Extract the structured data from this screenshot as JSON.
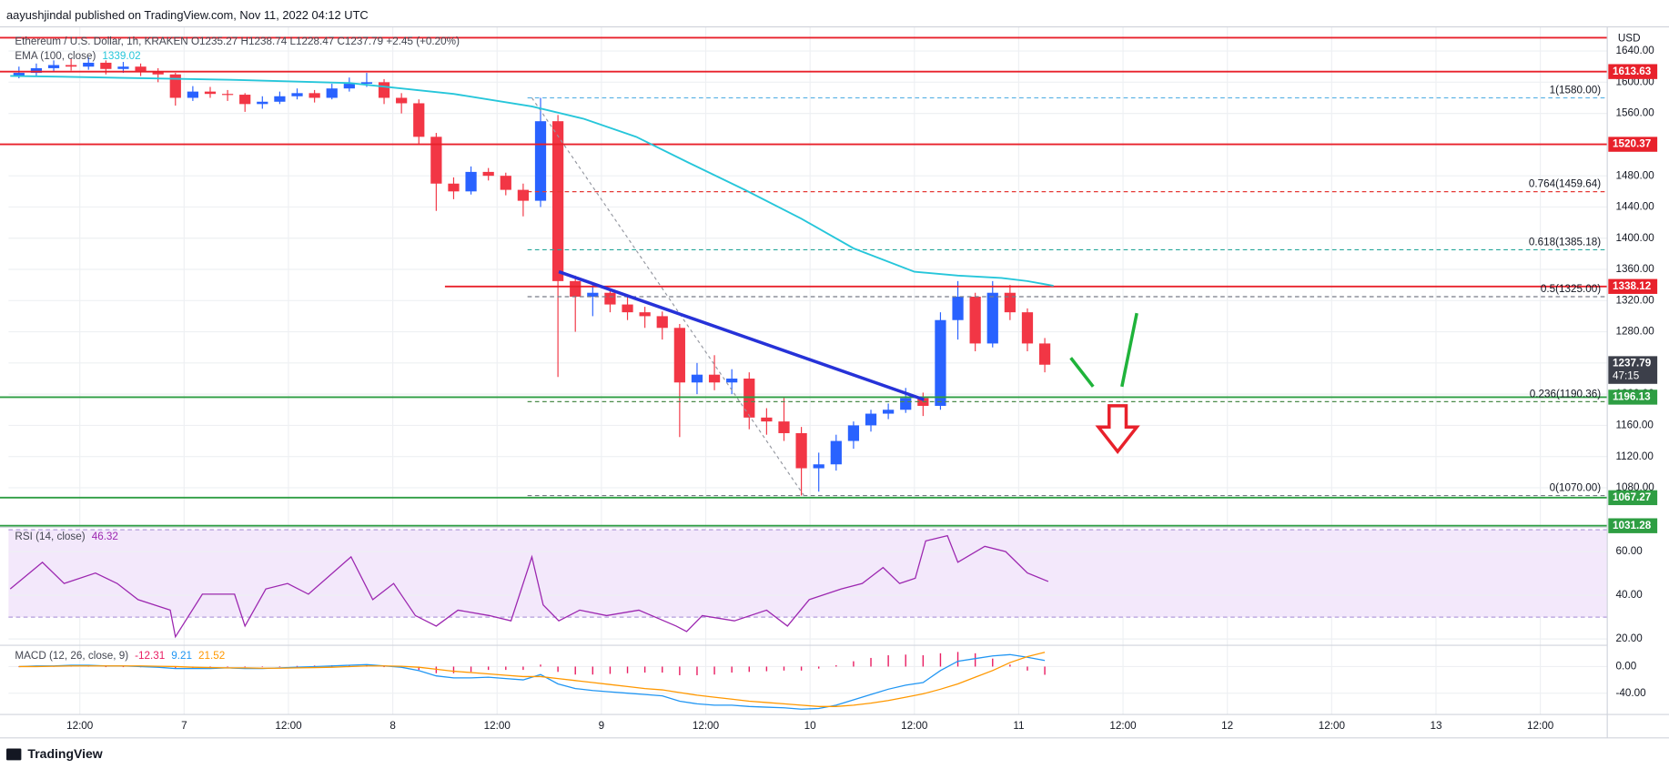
{
  "header": {
    "publisher": "aayushjindal published on TradingView.com, Nov 11, 2022 04:12 UTC",
    "symbol": "Ethereum / U.S. Dollar, 1h, KRAKEN  O1235.27  H1238.74  L1228.47  C1237.79  +2.45 (+0.20%)"
  },
  "chart_data": [
    {
      "type": "candlestick",
      "y_unit": "USD",
      "grid": true,
      "xlim": [
        3.8,
        187.7
      ],
      "ylim": [
        1029.5,
        1671
      ],
      "xticks": [
        {
          "value": 12,
          "label": "12:00"
        },
        {
          "value": 24,
          "label": "7"
        },
        {
          "value": 36,
          "label": "12:00"
        },
        {
          "value": 48,
          "label": "8"
        },
        {
          "value": 60,
          "label": "12:00"
        },
        {
          "value": 72,
          "label": "9"
        },
        {
          "value": 84,
          "label": "12:00"
        },
        {
          "value": 96,
          "label": "10"
        },
        {
          "value": 108,
          "label": "12:00"
        },
        {
          "value": 120,
          "label": "11"
        },
        {
          "value": 132,
          "label": "12:00"
        },
        {
          "value": 144,
          "label": "12"
        },
        {
          "value": 156,
          "label": "12:00"
        },
        {
          "value": 168,
          "label": "13"
        },
        {
          "value": 180,
          "label": "12:00"
        }
      ],
      "yticks": [
        {
          "value": 1080,
          "label": "1080.00"
        },
        {
          "value": 1120,
          "label": "1120.00"
        },
        {
          "value": 1160,
          "label": "1160.00"
        },
        {
          "value": 1200,
          "label": "1200.00"
        },
        {
          "value": 1240,
          "label": "1240.00"
        },
        {
          "value": 1280,
          "label": "1280.00"
        },
        {
          "value": 1320,
          "label": "1320.00"
        },
        {
          "value": 1360,
          "label": "1360.00"
        },
        {
          "value": 1400,
          "label": "1400.00"
        },
        {
          "value": 1440,
          "label": "1440.00"
        },
        {
          "value": 1480,
          "label": "1480.00"
        },
        {
          "value": 1520,
          "label": "1520.00"
        },
        {
          "value": 1560,
          "label": "1560.00"
        },
        {
          "value": 1600,
          "label": "1600.00"
        },
        {
          "value": 1640,
          "label": "1640.00"
        }
      ],
      "up_color": "#2962ff",
      "down_color": "#f23645",
      "x": [
        5,
        7,
        9,
        11,
        13,
        15,
        17,
        19,
        21,
        23,
        25,
        27,
        29,
        31,
        33,
        35,
        37,
        39,
        41,
        43,
        45,
        47,
        49,
        51,
        53,
        55,
        57,
        59,
        61,
        63,
        65,
        67,
        69,
        71,
        73,
        75,
        77,
        79,
        81,
        83,
        85,
        87,
        89,
        91,
        93,
        95,
        97,
        99,
        101,
        103,
        105,
        107,
        109,
        111,
        113,
        115,
        117,
        119,
        121,
        123
      ],
      "open": [
        1608,
        1612,
        1618,
        1622,
        1620,
        1625,
        1617,
        1620,
        1614,
        1610,
        1580,
        1588,
        1585,
        1584,
        1572,
        1575,
        1582,
        1586,
        1580,
        1592,
        1598,
        1600,
        1580,
        1573,
        1530,
        1470,
        1460,
        1485,
        1480,
        1462,
        1448,
        1550,
        1345,
        1325,
        1330,
        1315,
        1305,
        1300,
        1285,
        1215,
        1225,
        1215,
        1220,
        1170,
        1165,
        1150,
        1105,
        1110,
        1140,
        1160,
        1175,
        1180,
        1195,
        1185,
        1295,
        1325,
        1265,
        1330,
        1305,
        1265
      ],
      "high": [
        1620,
        1624,
        1628,
        1630,
        1632,
        1628,
        1626,
        1624,
        1618,
        1612,
        1595,
        1594,
        1590,
        1586,
        1582,
        1588,
        1592,
        1590,
        1598,
        1606,
        1612,
        1604,
        1586,
        1578,
        1535,
        1478,
        1492,
        1490,
        1484,
        1470,
        1580,
        1558,
        1352,
        1340,
        1335,
        1325,
        1312,
        1306,
        1290,
        1240,
        1250,
        1232,
        1228,
        1182,
        1195,
        1158,
        1125,
        1148,
        1165,
        1180,
        1188,
        1208,
        1202,
        1305,
        1345,
        1330,
        1345,
        1340,
        1310,
        1272
      ],
      "low": [
        1605,
        1608,
        1614,
        1615,
        1616,
        1610,
        1612,
        1608,
        1600,
        1570,
        1576,
        1580,
        1576,
        1562,
        1566,
        1572,
        1578,
        1574,
        1578,
        1588,
        1594,
        1572,
        1560,
        1520,
        1435,
        1450,
        1456,
        1474,
        1455,
        1428,
        1440,
        1222,
        1280,
        1300,
        1305,
        1295,
        1285,
        1270,
        1145,
        1200,
        1205,
        1200,
        1155,
        1148,
        1140,
        1070,
        1075,
        1102,
        1130,
        1152,
        1168,
        1176,
        1172,
        1180,
        1270,
        1255,
        1260,
        1295,
        1255,
        1228
      ],
      "close": [
        1612,
        1618,
        1622,
        1620,
        1625,
        1617,
        1620,
        1614,
        1610,
        1580,
        1588,
        1585,
        1584,
        1572,
        1575,
        1582,
        1586,
        1580,
        1592,
        1598,
        1600,
        1580,
        1573,
        1530,
        1470,
        1460,
        1485,
        1480,
        1462,
        1448,
        1550,
        1345,
        1325,
        1330,
        1315,
        1305,
        1300,
        1285,
        1215,
        1225,
        1215,
        1220,
        1170,
        1165,
        1150,
        1105,
        1110,
        1140,
        1160,
        1175,
        1180,
        1195,
        1185,
        1295,
        1325,
        1265,
        1330,
        1305,
        1265,
        1237.79
      ],
      "ema": {
        "name": "EMA (100, close)",
        "color": "#26c6da",
        "x": [
          4,
          10,
          20,
          30,
          43,
          55,
          64,
          70,
          76,
          82,
          88.5,
          95,
          101,
          108,
          113,
          118,
          121,
          124
        ],
        "values": [
          1608,
          1607,
          1605,
          1603,
          1599,
          1585,
          1569,
          1553,
          1530,
          1497,
          1462,
          1425,
          1387,
          1357,
          1352,
          1349,
          1345,
          1339.02
        ]
      },
      "levels": [
        {
          "value": 1657,
          "color": "#e8212b",
          "axis_label": false
        },
        {
          "value": 1613.63,
          "color": "#e8212b",
          "axis_label": true
        },
        {
          "value": 1520.37,
          "color": "#e8212b",
          "axis_label": true
        },
        {
          "value": 1338.12,
          "color": "#e8212b",
          "axis_label": true,
          "x_start": 54
        },
        {
          "value": 1196.13,
          "color": "#2e9e43",
          "axis_label": true
        },
        {
          "value": 1067.27,
          "color": "#2e9e43",
          "axis_label": true
        },
        {
          "value": 1031.28,
          "color": "#2e9e43",
          "axis_label": true
        }
      ],
      "fib": {
        "x_start": 63.5,
        "levels": [
          {
            "value": 1580,
            "label": "1(1580.00)",
            "color": "#5fb4e5"
          },
          {
            "value": 1459.64,
            "label": "0.764(1459.64)",
            "color": "#e53935"
          },
          {
            "value": 1385.18,
            "label": "0.618(1385.18)",
            "color": "#26a69a"
          },
          {
            "value": 1325,
            "label": "0.5(1325.00)",
            "color": "#787b86"
          },
          {
            "value": 1190.36,
            "label": "0.236(1190.36)",
            "color": "#4c8c4a"
          },
          {
            "value": 1070,
            "label": "0(1070.00)",
            "color": "#787b86"
          }
        ]
      },
      "fib_guide": {
        "x": [
          64,
          95.3
        ],
        "values": [
          1580,
          1070
        ],
        "color": "#9598a1"
      },
      "trendline": {
        "x": [
          67.1,
          109.1
        ],
        "values": [
          1357,
          1193
        ],
        "color": "#2632d8"
      },
      "last_price": {
        "value": 1237.79,
        "countdown": "47:15",
        "color": "#3c3f4a"
      }
    },
    {
      "type": "line",
      "name": "RSI (14, close)",
      "color": "#9c27b0",
      "xlim": [
        3.8,
        187.7
      ],
      "ylim": [
        17.1,
        71.2
      ],
      "yticks": [
        {
          "value": 20,
          "label": "20.00"
        },
        {
          "value": 40,
          "label": "40.00"
        },
        {
          "value": 60,
          "label": "60.00"
        }
      ],
      "band": [
        30,
        70
      ],
      "band_color": "#f3e8fb",
      "band_line_color": "#b39ddb",
      "x": [
        4,
        7.7,
        10.2,
        13.8,
        16.3,
        18.7,
        22.4,
        23,
        26.1,
        29.8,
        31,
        33.4,
        35.9,
        38.3,
        43.2,
        45.7,
        48.1,
        50.6,
        53,
        55.5,
        59.1,
        61.6,
        64,
        65.3,
        67.1,
        69.5,
        72.6,
        76.3,
        80.6,
        81.8,
        83.6,
        87.3,
        91,
        93.4,
        95.9,
        99.6,
        102,
        104.4,
        106.3,
        108.1,
        109.3,
        111.8,
        113,
        116.1,
        118.5,
        121,
        123.4
      ],
      "values": [
        42.9,
        55.1,
        45.4,
        50.2,
        45.4,
        38,
        33.2,
        21,
        40.5,
        40.5,
        25.9,
        42.9,
        45.4,
        40.5,
        57.6,
        38,
        45.4,
        30.7,
        25.9,
        33.2,
        30.7,
        28.3,
        57.6,
        35.6,
        28.3,
        33.2,
        30.7,
        33.2,
        25.9,
        23.4,
        30.7,
        28.3,
        33.2,
        25.9,
        38,
        42.9,
        45.4,
        52.7,
        45.4,
        47.8,
        64.9,
        67.3,
        55.1,
        62.4,
        60,
        50.2,
        46.32
      ]
    },
    {
      "type": "macd",
      "name": "MACD (12, 26, close, 9)",
      "xlim": [
        3.8,
        187.7
      ],
      "ylim": [
        -72,
        32
      ],
      "yticks": [
        {
          "value": 0,
          "label": "0.00"
        },
        {
          "value": -40,
          "label": "-40.00"
        }
      ],
      "histogram_color": "#e91e63",
      "macd_color": "#2196f3",
      "signal_color": "#ff9800",
      "x": [
        5,
        7,
        9,
        11,
        13,
        15,
        17,
        19,
        21,
        23,
        25,
        27,
        29,
        31,
        33,
        35,
        37,
        39,
        41,
        43,
        45,
        47,
        49,
        51,
        53,
        55,
        57,
        59,
        61,
        63,
        65,
        67,
        69,
        71,
        73,
        75,
        77,
        79,
        81,
        83,
        85,
        87,
        89,
        91,
        93,
        95,
        97,
        99,
        101,
        103,
        105,
        107,
        109,
        111,
        113,
        115,
        117,
        119,
        121,
        123
      ],
      "histogram": [
        0,
        1,
        0.5,
        1,
        1,
        0,
        0,
        -1,
        -1.5,
        -3,
        -2,
        -1.5,
        0,
        -1,
        -0.5,
        0.5,
        1,
        1.5,
        2,
        2,
        2,
        0,
        -1.5,
        -5,
        -10,
        -10,
        -8,
        -5,
        -5,
        -5,
        3,
        -8,
        -12,
        -12,
        -11,
        -10,
        -9,
        -9,
        -13,
        -13,
        -12,
        -9,
        -8,
        -7,
        -6,
        -6,
        -3,
        2,
        8,
        13,
        17,
        18,
        17,
        20,
        22,
        20,
        12,
        3,
        -6,
        -12.31
      ],
      "macd": [
        0,
        1,
        1,
        2,
        2,
        1,
        1,
        0,
        -1,
        -3,
        -3,
        -3,
        -2,
        -3,
        -3,
        -2,
        -1,
        0,
        1,
        2,
        3,
        1,
        -1,
        -6,
        -14,
        -17,
        -17,
        -16,
        -18,
        -20,
        -12,
        -26,
        -33,
        -36,
        -38,
        -40,
        -42,
        -44,
        -52,
        -56,
        -58,
        -58,
        -60,
        -61,
        -62,
        -64,
        -63,
        -58,
        -50,
        -42,
        -34,
        -28,
        -24,
        -6,
        8,
        12,
        16,
        18,
        14,
        9.21
      ],
      "signal": [
        0,
        0,
        0.5,
        1,
        1,
        1,
        1,
        1,
        0.5,
        0,
        -1,
        -1.5,
        -2,
        -2,
        -2.5,
        -2.5,
        -2,
        -1.5,
        -1,
        0,
        1,
        1,
        0.5,
        -1,
        -4,
        -7,
        -9,
        -11,
        -13,
        -15,
        -15,
        -18,
        -21,
        -24,
        -27,
        -30,
        -33,
        -35,
        -39,
        -43,
        -46,
        -49,
        -52,
        -54,
        -56,
        -58,
        -60,
        -60,
        -58,
        -55,
        -51,
        -46,
        -41,
        -34,
        -26,
        -16,
        -6,
        6,
        15,
        21.52
      ]
    }
  ],
  "footer": "TradingView"
}
